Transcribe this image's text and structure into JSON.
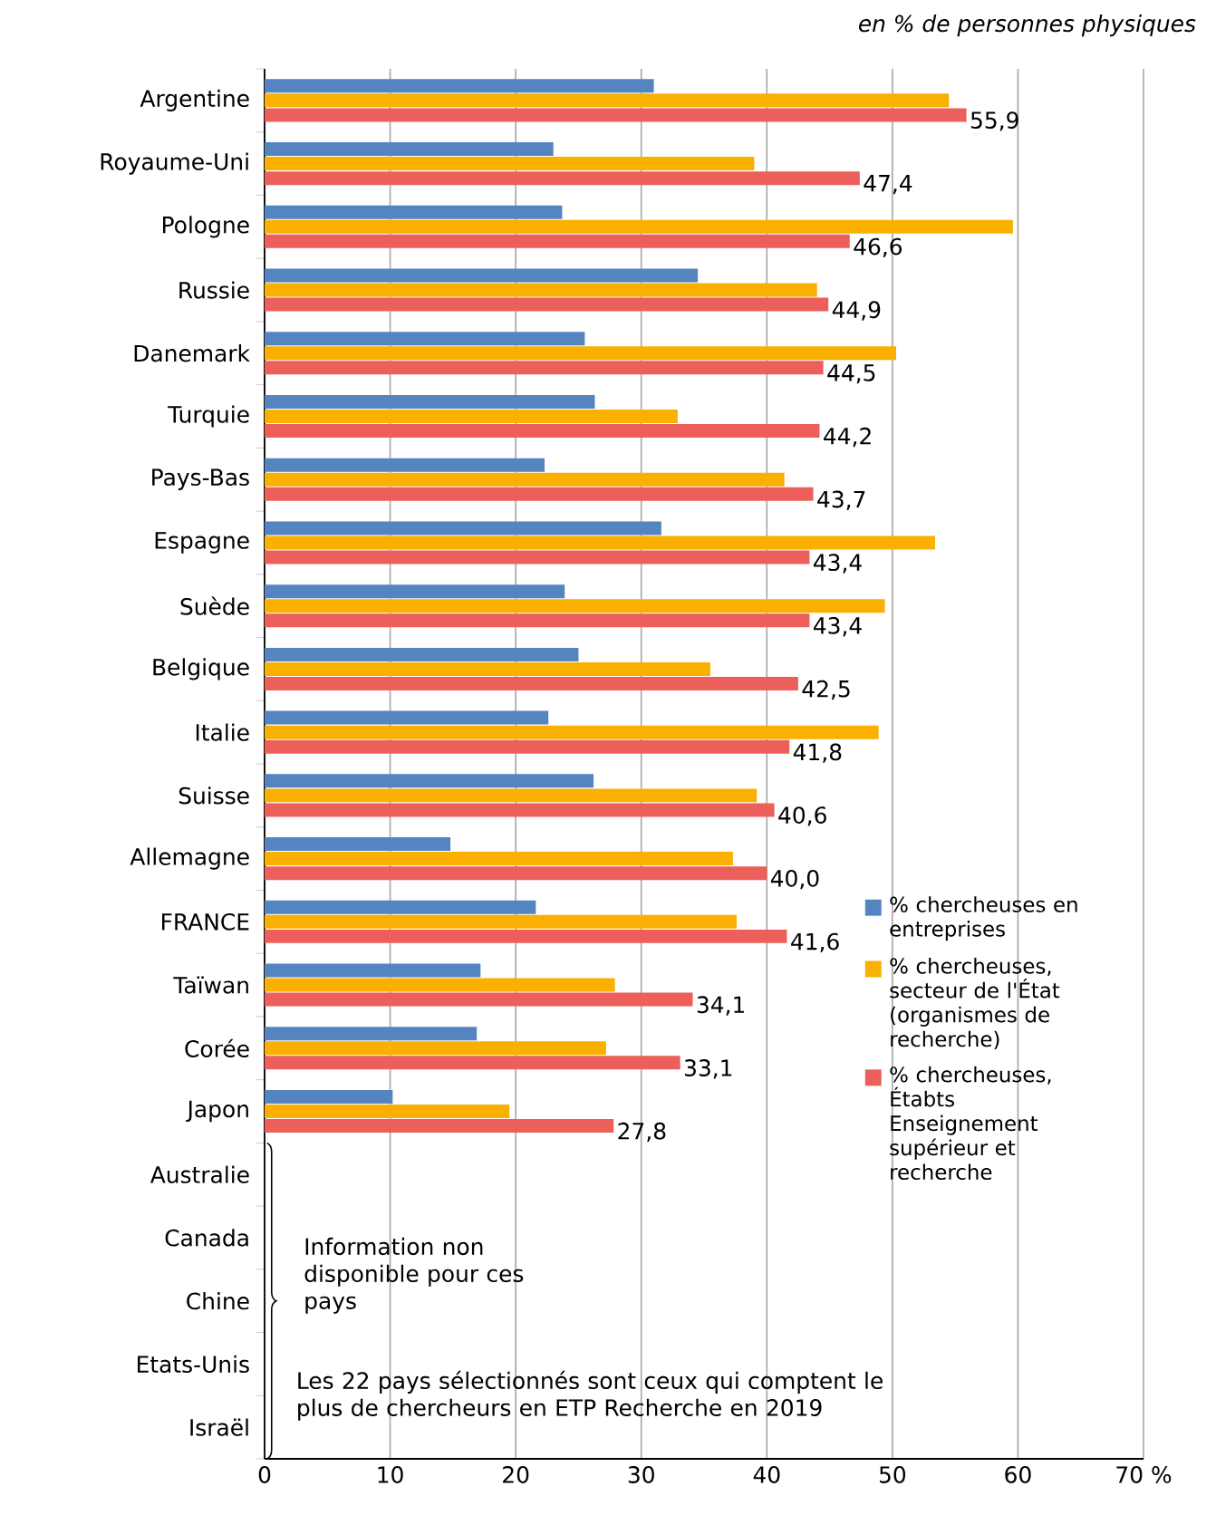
{
  "chart_data": {
    "type": "bar",
    "orientation": "horizontal",
    "subtitle": "en % de personnes physiques",
    "categories": [
      "Argentine",
      "Royaume-Uni",
      "Pologne",
      "Russie",
      "Danemark",
      "Turquie",
      "Pays-Bas",
      "Espagne",
      "Suède",
      "Belgique",
      "Italie",
      "Suisse",
      "Allemagne",
      "FRANCE",
      "Taïwan",
      "Corée",
      "Japon",
      "Australie",
      "Canada",
      "Chine",
      "Etats-Unis",
      "Israël"
    ],
    "series": [
      {
        "name": "% chercheuses en entreprises",
        "color": "#5585c0",
        "values": [
          31.0,
          23.0,
          23.7,
          34.5,
          25.5,
          26.3,
          22.3,
          31.6,
          23.9,
          25.0,
          22.6,
          26.2,
          14.8,
          21.6,
          17.2,
          16.9,
          10.2,
          null,
          null,
          null,
          null,
          null
        ]
      },
      {
        "name": "% chercheuses, secteur de l'État (organismes de recherche)",
        "color": "#f9b000",
        "values": [
          54.5,
          39.0,
          59.6,
          44.0,
          50.3,
          32.9,
          41.4,
          53.4,
          49.4,
          35.5,
          48.9,
          39.2,
          37.3,
          37.6,
          27.9,
          27.2,
          19.5,
          null,
          null,
          null,
          null,
          null
        ]
      },
      {
        "name": "% chercheuses, Étabts Enseignement supérieur et recherche",
        "color": "#ec5f5a",
        "values": [
          55.9,
          47.4,
          46.6,
          44.9,
          44.5,
          44.2,
          43.7,
          43.4,
          43.4,
          42.5,
          41.8,
          40.6,
          40.0,
          41.6,
          34.1,
          33.1,
          27.8,
          null,
          null,
          null,
          null,
          null
        ],
        "value_labels": [
          "55,9",
          "47,4",
          "46,6",
          "44,9",
          "44,5",
          "44,2",
          "43,7",
          "43,4",
          "43,4",
          "42,5",
          "41,8",
          "40,6",
          "40,0",
          "41,6",
          "34,1",
          "33,1",
          "27,8",
          null,
          null,
          null,
          null,
          null
        ]
      }
    ],
    "xlim": [
      0,
      70
    ],
    "xticks": [
      0,
      10,
      20,
      30,
      40,
      50,
      60,
      {
        "value": 70,
        "label": "70 %"
      }
    ],
    "grid": "x",
    "legend": "right",
    "annotations": [
      "Information non disponible pour ces pays",
      "Les 22 pays sélectionnés sont ceux qui comptent le plus de chercheurs en ETP Recherche en 2019"
    ]
  }
}
